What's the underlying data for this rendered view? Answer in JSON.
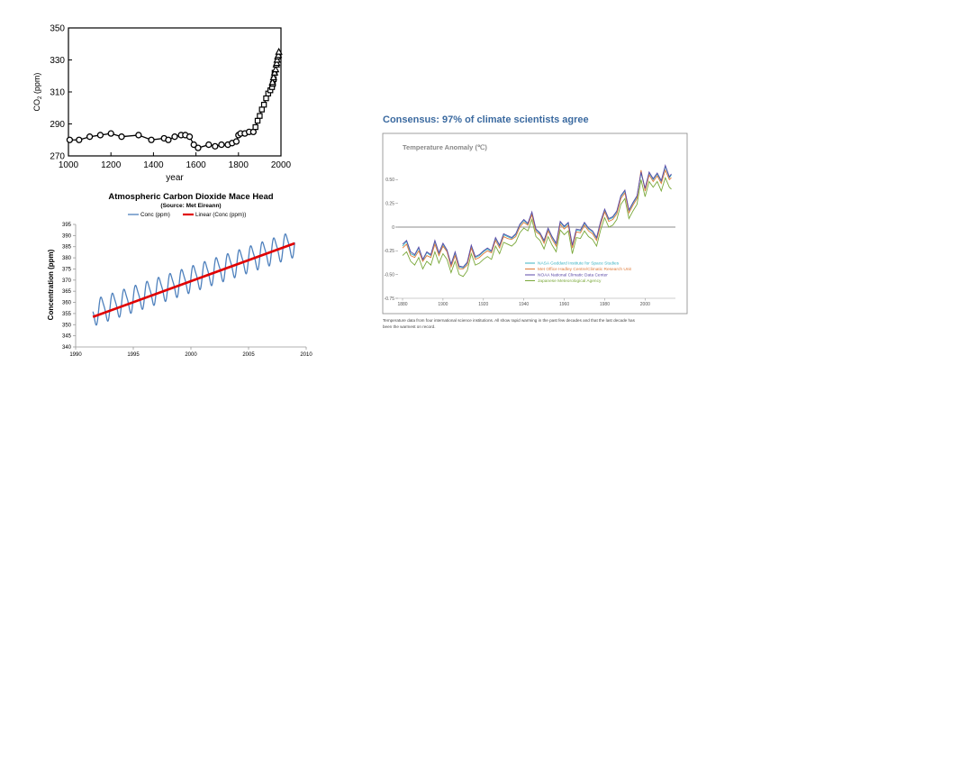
{
  "chart_data": [
    {
      "type": "scatter",
      "title": "",
      "xlabel": "year",
      "ylabel": "CO2 (ppm)",
      "xlim": [
        1000,
        2000
      ],
      "ylim": [
        270,
        350
      ],
      "xticks": [
        "1000",
        "1200",
        "1400",
        "1600",
        "1800",
        "2000"
      ],
      "yticks": [
        "270",
        "290",
        "310",
        "330",
        "350"
      ],
      "series": [
        {
          "marker": "circle",
          "x": [
            1006,
            1050,
            1100,
            1150,
            1200,
            1250,
            1330,
            1390,
            1450,
            1470,
            1500,
            1530,
            1550,
            1570,
            1590,
            1610,
            1660,
            1690,
            1720,
            1750,
            1770,
            1790,
            1800,
            1810,
            1830,
            1850,
            1870
          ],
          "y": [
            280,
            280,
            282,
            283,
            284,
            282,
            283,
            280,
            281,
            280,
            282,
            283,
            283,
            282,
            277,
            275,
            277,
            276,
            277,
            277,
            278,
            279,
            283,
            284,
            284,
            285,
            285
          ]
        },
        {
          "marker": "square",
          "x": [
            1880,
            1890,
            1900,
            1910,
            1920,
            1930,
            1940,
            1950,
            1958,
            1962,
            1966,
            1970
          ],
          "y": [
            288,
            292,
            295,
            299,
            302,
            306,
            309,
            311,
            313,
            315,
            318,
            322
          ]
        },
        {
          "marker": "triangle",
          "x": [
            1960,
            1965,
            1970,
            1975,
            1978,
            1980,
            1982,
            1985,
            1988,
            1990
          ],
          "y": [
            316,
            319,
            322,
            324,
            327,
            328,
            330,
            332,
            333,
            335
          ]
        }
      ],
      "grid": false
    },
    {
      "type": "line",
      "title": "Atmospheric Carbon Dioxide Mace Head",
      "subtitle": "(Source: Met Eireann)",
      "xlabel": "",
      "ylabel": "Concentration (ppm)",
      "xlim": [
        1990,
        2010
      ],
      "ylim": [
        340,
        395
      ],
      "xticks": [
        "1990",
        "1995",
        "2000",
        "2005",
        "2010"
      ],
      "yticks": [
        "340",
        "345",
        "350",
        "355",
        "360",
        "365",
        "370",
        "375",
        "380",
        "385",
        "390",
        "395"
      ],
      "legend_position": "top",
      "series": [
        {
          "name": "Conc (ppm)",
          "color": "#4f81bd",
          "seasonal": true,
          "x_start": 1991.5,
          "x_end": 2009.0,
          "trend_start": 355.5,
          "trend_end": 386.5,
          "amplitude": 5.5
        },
        {
          "name": "Linear (Conc (ppm))",
          "color": "#e00000",
          "x": [
            1991.5,
            2009.0
          ],
          "y": [
            353.5,
            386.5
          ]
        }
      ],
      "grid": false
    },
    {
      "type": "line",
      "heading": "Consensus: 97% of climate scientists agree",
      "title": "Temperature Anomaly (℃)",
      "caption": "Temperature data from four international science institutions. All show rapid warming in the past few decades and that the last decade has been the warmest on record.",
      "xlabel": "",
      "ylabel": "",
      "xlim": [
        1880,
        2015
      ],
      "ylim": [
        -0.75,
        0.75
      ],
      "xticks": [
        "1880",
        "1900",
        "1920",
        "1940",
        "1960",
        "1980",
        "2000"
      ],
      "yticks": [
        "0.50",
        "0.25",
        "0",
        "-0.25",
        "-0.50",
        "-0.75"
      ],
      "legend_position": "lower-right",
      "years": [
        1880,
        1882,
        1884,
        1886,
        1888,
        1890,
        1892,
        1894,
        1896,
        1898,
        1900,
        1902,
        1904,
        1906,
        1908,
        1910,
        1912,
        1914,
        1916,
        1918,
        1920,
        1922,
        1924,
        1926,
        1928,
        1930,
        1932,
        1934,
        1936,
        1938,
        1940,
        1942,
        1944,
        1946,
        1948,
        1950,
        1952,
        1954,
        1956,
        1958,
        1960,
        1962,
        1964,
        1966,
        1968,
        1970,
        1972,
        1974,
        1976,
        1978,
        1980,
        1982,
        1984,
        1986,
        1988,
        1990,
        1992,
        1994,
        1996,
        1998,
        2000,
        2002,
        2004,
        2006,
        2008,
        2010,
        2012,
        2013
      ],
      "series": [
        {
          "name": "NASA Goddard Institute for Space Studies",
          "color": "#3bb3c3",
          "values": [
            -0.2,
            -0.15,
            -0.28,
            -0.3,
            -0.22,
            -0.35,
            -0.27,
            -0.3,
            -0.15,
            -0.28,
            -0.18,
            -0.25,
            -0.4,
            -0.27,
            -0.42,
            -0.43,
            -0.38,
            -0.2,
            -0.32,
            -0.3,
            -0.26,
            -0.23,
            -0.26,
            -0.12,
            -0.2,
            -0.08,
            -0.1,
            -0.12,
            -0.08,
            0.02,
            0.07,
            0.03,
            0.15,
            -0.03,
            -0.07,
            -0.15,
            -0.02,
            -0.11,
            -0.18,
            0.05,
            0.0,
            0.04,
            -0.2,
            -0.03,
            -0.04,
            0.04,
            -0.02,
            -0.05,
            -0.12,
            0.05,
            0.18,
            0.08,
            0.1,
            0.16,
            0.32,
            0.38,
            0.17,
            0.25,
            0.32,
            0.57,
            0.4,
            0.57,
            0.5,
            0.56,
            0.48,
            0.64,
            0.52,
            0.55
          ]
        },
        {
          "name": "Met Office Hadley Centre/Climatic Research Unit",
          "color": "#e07b39",
          "values": [
            -0.22,
            -0.18,
            -0.3,
            -0.32,
            -0.25,
            -0.36,
            -0.3,
            -0.32,
            -0.18,
            -0.3,
            -0.2,
            -0.26,
            -0.42,
            -0.3,
            -0.44,
            -0.44,
            -0.4,
            -0.22,
            -0.34,
            -0.32,
            -0.28,
            -0.25,
            -0.27,
            -0.14,
            -0.22,
            -0.1,
            -0.12,
            -0.13,
            -0.1,
            0.0,
            0.05,
            0.02,
            0.13,
            -0.05,
            -0.08,
            -0.17,
            -0.04,
            -0.13,
            -0.2,
            0.03,
            -0.02,
            0.02,
            -0.22,
            -0.05,
            -0.06,
            0.02,
            -0.04,
            -0.07,
            -0.14,
            0.03,
            0.16,
            0.06,
            0.08,
            0.14,
            0.3,
            0.36,
            0.15,
            0.23,
            0.3,
            0.6,
            0.38,
            0.55,
            0.48,
            0.54,
            0.46,
            0.6,
            0.5,
            0.52
          ]
        },
        {
          "name": "NOAA National Climatic Data Center",
          "color": "#5b4aa8",
          "values": [
            -0.18,
            -0.14,
            -0.26,
            -0.29,
            -0.21,
            -0.34,
            -0.26,
            -0.29,
            -0.14,
            -0.27,
            -0.17,
            -0.24,
            -0.39,
            -0.26,
            -0.41,
            -0.42,
            -0.37,
            -0.19,
            -0.31,
            -0.29,
            -0.25,
            -0.22,
            -0.25,
            -0.11,
            -0.19,
            -0.07,
            -0.09,
            -0.11,
            -0.07,
            0.03,
            0.08,
            0.04,
            0.16,
            -0.02,
            -0.06,
            -0.14,
            -0.01,
            -0.1,
            -0.17,
            0.06,
            0.01,
            0.05,
            -0.19,
            -0.02,
            -0.03,
            0.05,
            -0.01,
            -0.04,
            -0.11,
            0.06,
            0.19,
            0.09,
            0.11,
            0.17,
            0.33,
            0.39,
            0.18,
            0.26,
            0.33,
            0.58,
            0.41,
            0.58,
            0.51,
            0.57,
            0.49,
            0.65,
            0.53,
            0.56
          ]
        },
        {
          "name": "Japanese Meteorological Agency",
          "color": "#7aa83a",
          "values": [
            -0.3,
            -0.26,
            -0.36,
            -0.4,
            -0.32,
            -0.44,
            -0.36,
            -0.4,
            -0.26,
            -0.38,
            -0.28,
            -0.34,
            -0.48,
            -0.36,
            -0.5,
            -0.52,
            -0.46,
            -0.28,
            -0.4,
            -0.38,
            -0.34,
            -0.31,
            -0.34,
            -0.2,
            -0.28,
            -0.16,
            -0.18,
            -0.2,
            -0.16,
            -0.06,
            -0.01,
            -0.04,
            0.08,
            -0.1,
            -0.14,
            -0.23,
            -0.1,
            -0.19,
            -0.26,
            -0.03,
            -0.08,
            -0.04,
            -0.28,
            -0.11,
            -0.12,
            -0.04,
            -0.1,
            -0.13,
            -0.2,
            -0.03,
            0.1,
            0.0,
            0.02,
            0.08,
            0.24,
            0.3,
            0.09,
            0.17,
            0.24,
            0.5,
            0.32,
            0.48,
            0.42,
            0.48,
            0.38,
            0.52,
            0.42,
            0.4
          ]
        }
      ],
      "grid": false
    }
  ]
}
